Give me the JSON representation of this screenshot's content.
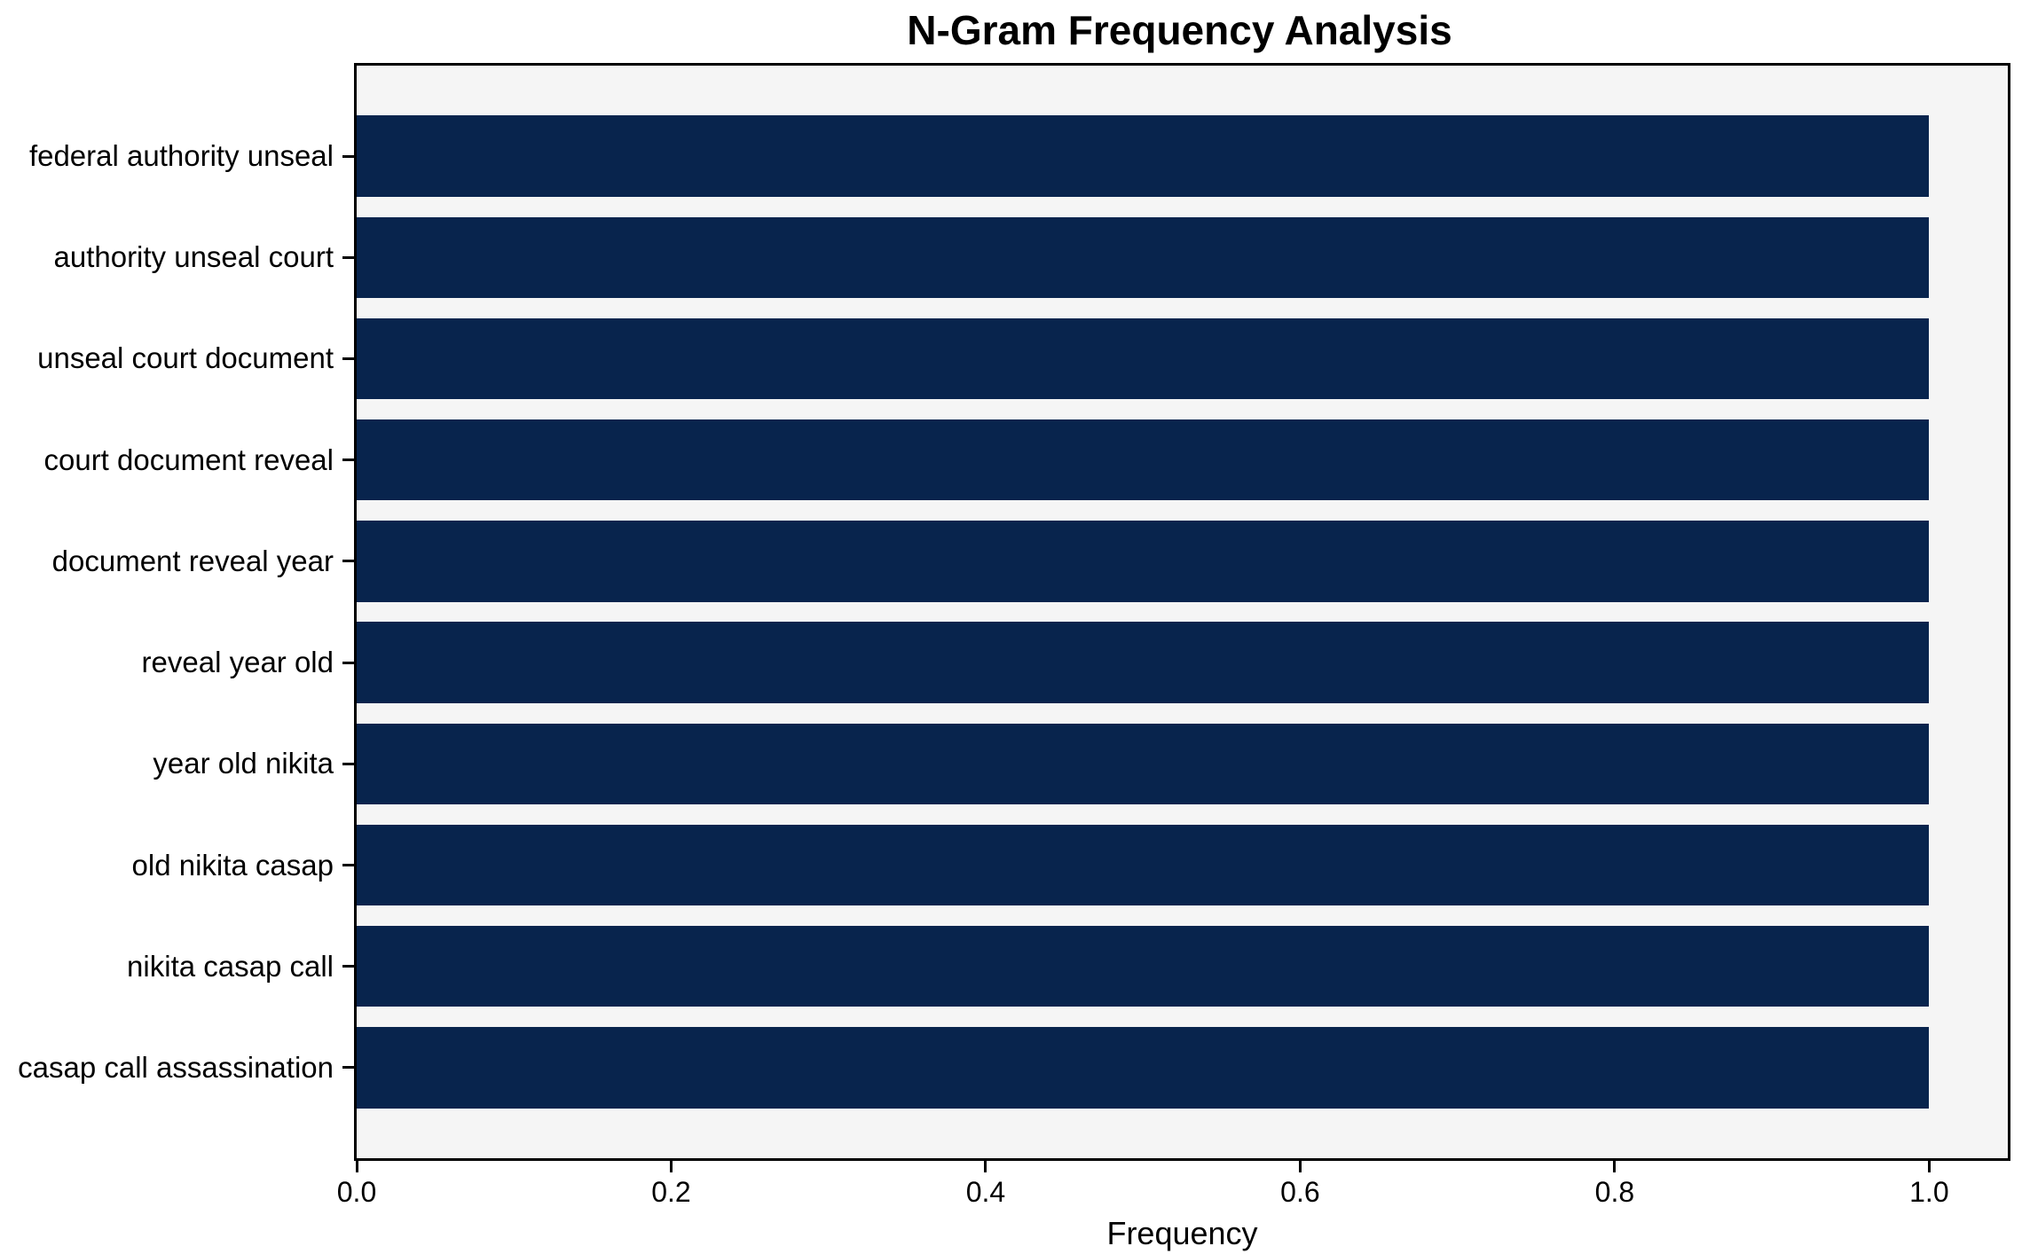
{
  "chart_data": {
    "type": "bar",
    "orientation": "horizontal",
    "title": "N-Gram Frequency Analysis",
    "xlabel": "Frequency",
    "ylabel": "",
    "categories": [
      "federal authority unseal",
      "authority unseal court",
      "unseal court document",
      "court document reveal",
      "document reveal year",
      "reveal year old",
      "year old nikita",
      "old nikita casap",
      "nikita casap call",
      "casap call assassination"
    ],
    "values": [
      1.0,
      1.0,
      1.0,
      1.0,
      1.0,
      1.0,
      1.0,
      1.0,
      1.0,
      1.0
    ],
    "xlim": [
      0,
      1.05
    ],
    "xticks": [
      0.0,
      0.2,
      0.4,
      0.6,
      0.8,
      1.0
    ],
    "xtick_labels": [
      "0.0",
      "0.2",
      "0.4",
      "0.6",
      "0.8",
      "1.0"
    ],
    "bar_height_fraction": 0.8,
    "grid": false,
    "legend": null,
    "colors": {
      "bar": "#08244d",
      "plot_background": "#f5f5f5",
      "figure_background": "#ffffff",
      "axis_edge": "#000000",
      "text": "#000000"
    }
  }
}
